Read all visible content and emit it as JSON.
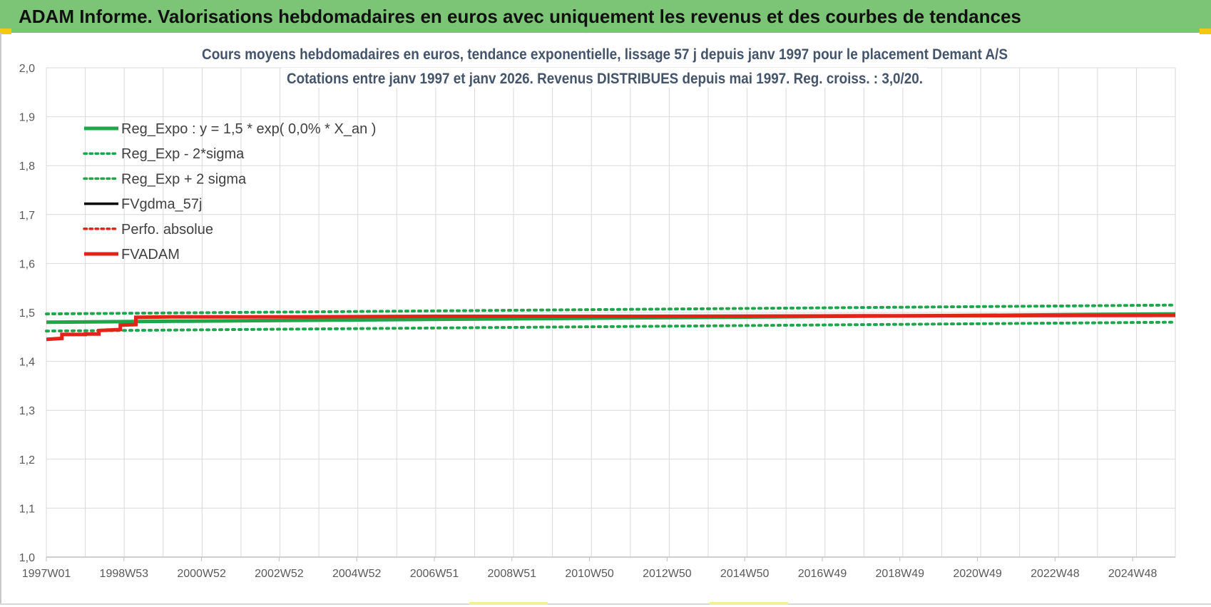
{
  "header": {
    "title": "ADAM Informe. Valorisations hebdomadaires en euros avec uniquement les revenus et des courbes de tendances"
  },
  "colors": {
    "banner": "#7cc576",
    "green": "#1fa64b",
    "red": "#e2231a",
    "black": "#000000",
    "grid": "#d9d9d9",
    "text": "#44546a"
  },
  "chart_data": {
    "type": "line",
    "title": "Cours moyens hebdomadaires en euros, tendance exponentielle, lissage 57 j depuis janv 1997  pour le placement Demant A/S",
    "subtitle": "Cotations entre janv 1997 et janv 2026. Revenus DISTRIBUES depuis mai 1997.  Reg. croiss. : 3,0/20.",
    "x_tick_labels": [
      "1997W01",
      "1998W53",
      "2000W52",
      "2002W52",
      "2004W52",
      "2006W51",
      "2008W51",
      "2010W50",
      "2012W50",
      "2014W50",
      "2016W49",
      "2018W49",
      "2020W49",
      "2022W48",
      "2024W48"
    ],
    "x_range": [
      1997.0,
      2026.0
    ],
    "ylim": [
      1.0,
      2.0
    ],
    "y_ticks": [
      "1,0",
      "1,1",
      "1,2",
      "1,3",
      "1,4",
      "1,5",
      "1,6",
      "1,7",
      "1,8",
      "1,9",
      "2,0"
    ],
    "grid": true,
    "legend_position": "top-left",
    "legend": [
      {
        "label": "Reg_Expo : y = 1,5 * exp( 0,0% *  X_an )",
        "color": "#1fa64b",
        "style": "solid-thick"
      },
      {
        "label": "Reg_Exp - 2*sigma",
        "color": "#1fa64b",
        "style": "dotted"
      },
      {
        "label": "Reg_Exp + 2 sigma",
        "color": "#1fa64b",
        "style": "dotted"
      },
      {
        "label": "FVgdma_57j",
        "color": "#000000",
        "style": "solid"
      },
      {
        "label": "Perfo. absolue",
        "color": "#e2231a",
        "style": "dotted"
      },
      {
        "label": "FVADAM",
        "color": "#e2231a",
        "style": "solid-thick"
      }
    ],
    "series": [
      {
        "name": "Reg_Expo : y = 1,5 * exp( 0,0% *  X_an )",
        "x": [
          1997.0,
          2026.0
        ],
        "y": [
          1.48,
          1.497
        ]
      },
      {
        "name": "Reg_Exp - 2*sigma",
        "x": [
          1997.0,
          2026.0
        ],
        "y": [
          1.462,
          1.48
        ]
      },
      {
        "name": "Reg_Exp + 2 sigma",
        "x": [
          1997.0,
          2026.0
        ],
        "y": [
          1.497,
          1.515
        ]
      },
      {
        "name": "FVADAM",
        "x": [
          1997.0,
          1997.4,
          1997.4,
          1998.0,
          1998.0,
          1998.35,
          1998.35,
          1998.9,
          1998.9,
          1999.3,
          1999.3,
          2000.2,
          2003.5,
          2007.0,
          2012.0,
          2018.0,
          2026.0
        ],
        "y": [
          1.445,
          1.447,
          1.455,
          1.455,
          1.456,
          1.456,
          1.463,
          1.465,
          1.474,
          1.475,
          1.49,
          1.491,
          1.491,
          1.492,
          1.492,
          1.493,
          1.494
        ]
      }
    ]
  }
}
